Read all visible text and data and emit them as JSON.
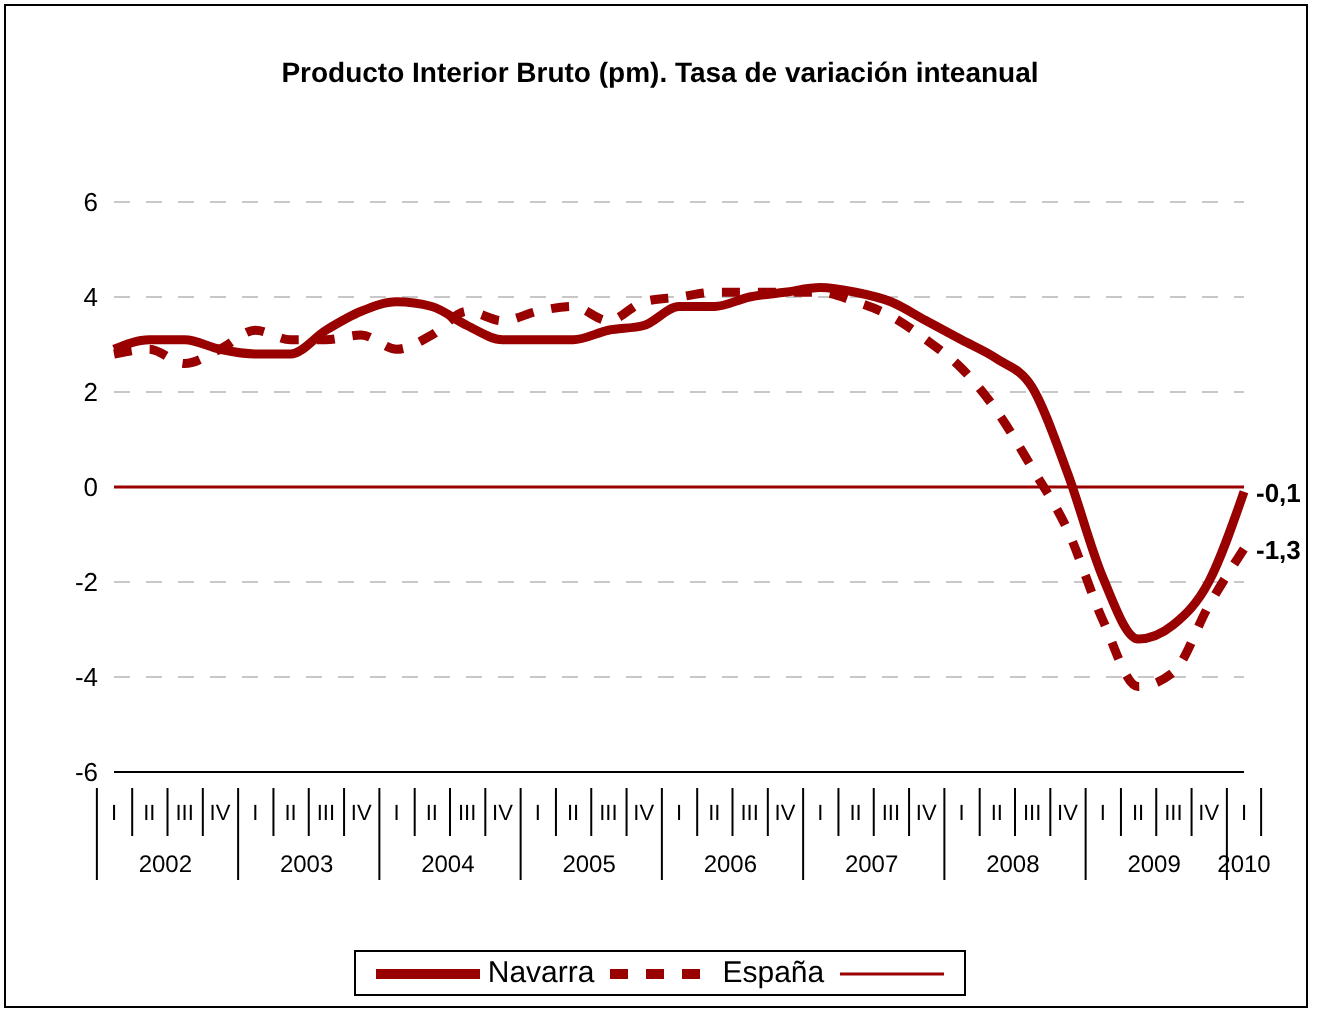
{
  "chart_data": {
    "type": "line",
    "title": "Producto Interior Bruto (pm). Tasa de variación inteanual",
    "categories": [
      "I",
      "II",
      "III",
      "IV",
      "I",
      "II",
      "III",
      "IV",
      "I",
      "II",
      "III",
      "IV",
      "I",
      "II",
      "III",
      "IV",
      "I",
      "II",
      "III",
      "IV",
      "I",
      "II",
      "III",
      "IV",
      "I",
      "II",
      "III",
      "IV",
      "I",
      "II",
      "III",
      "IV",
      "I"
    ],
    "series": [
      {
        "name": "Navarra",
        "color": "#990000",
        "line_style": "solid",
        "values": [
          2.9,
          3.1,
          3.1,
          2.9,
          2.8,
          2.8,
          3.3,
          3.7,
          3.9,
          3.8,
          3.4,
          3.1,
          3.1,
          3.1,
          3.3,
          3.4,
          3.8,
          3.8,
          4.0,
          4.1,
          4.2,
          4.1,
          3.9,
          3.5,
          3.1,
          2.7,
          2.1,
          0.3,
          -1.9,
          -3.2,
          -2.9,
          -2.0,
          -0.1
        ],
        "value_labels": [
          null,
          null,
          null,
          null,
          null,
          null,
          null,
          null,
          null,
          null,
          null,
          null,
          null,
          null,
          null,
          null,
          null,
          null,
          null,
          null,
          null,
          null,
          null,
          null,
          null,
          null,
          null,
          null,
          null,
          null,
          null,
          null,
          "-0,1"
        ]
      },
      {
        "name": "España",
        "color": "#990000",
        "line_style": "dashed",
        "values": [
          2.8,
          2.9,
          2.6,
          2.9,
          3.3,
          3.1,
          3.1,
          3.2,
          2.9,
          3.2,
          3.7,
          3.5,
          3.7,
          3.8,
          3.5,
          3.9,
          4.0,
          4.1,
          4.1,
          4.1,
          4.1,
          3.9,
          3.6,
          3.1,
          2.5,
          1.6,
          0.4,
          -0.9,
          -2.8,
          -4.2,
          -3.9,
          -2.5,
          -1.3
        ],
        "value_labels": [
          null,
          null,
          null,
          null,
          null,
          null,
          null,
          null,
          null,
          null,
          null,
          null,
          null,
          null,
          null,
          null,
          null,
          null,
          null,
          null,
          null,
          null,
          null,
          null,
          null,
          null,
          null,
          null,
          null,
          null,
          null,
          null,
          "-1,3"
        ]
      }
    ],
    "annotations": [
      "2002",
      "2003",
      "2004",
      "2005",
      "2006",
      "2007",
      "2008",
      "2009",
      "2010"
    ],
    "ylim": [
      -6,
      6
    ],
    "yticks": [
      -6,
      -4,
      -2,
      0,
      2,
      4,
      6
    ],
    "ref_lines": [
      {
        "axis": "y",
        "value": 0,
        "color": "#990000"
      }
    ],
    "grid": "y",
    "legend": "bottom",
    "marker": "none"
  }
}
